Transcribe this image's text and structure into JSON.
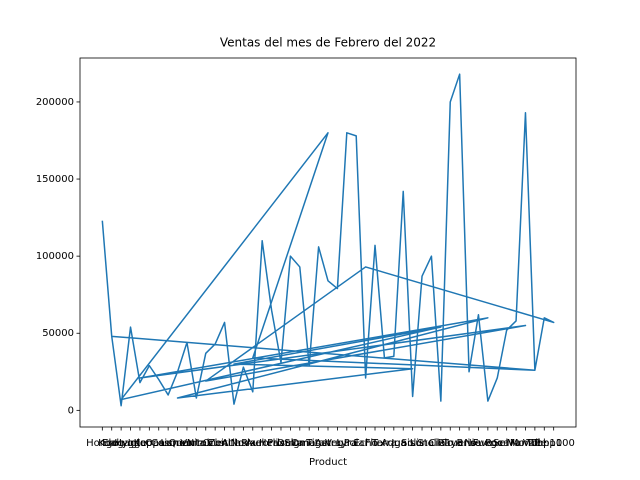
{
  "chart_data": {
    "type": "line",
    "title": "Ventas del mes de Febrero del 2022",
    "x_label": "Product",
    "color": "#1f77b4",
    "categories": [
      "Hongo",
      "Koala",
      "Elegant",
      "Hygge",
      "Igloo",
      "Kappa",
      "Oasis",
      "Cosmo",
      "Lumen",
      "Quanta",
      "Vortex",
      "Nimbus",
      "Orbit",
      "Zenith",
      "Atlas",
      "Nova",
      "Pixel",
      "Aurora",
      "Helix",
      "Prism",
      "Delta",
      "Sigma",
      "Omega",
      "Titan",
      "Astra",
      "Vega",
      "Lyra",
      "Polar",
      "Echo",
      "Flux",
      "Terra",
      "Aqua",
      "Ignis",
      "Solis",
      "Luna",
      "Stella",
      "Cielo",
      "Rayo",
      "Trueno",
      "Brisa",
      "Nieve",
      "Fuego",
      "Roca",
      "Selva",
      "Mar",
      "Monte",
      "Valle",
      "Tohp10",
      "Tohp100",
      "Echo",
      "Nimbus",
      "Monte",
      "Igloo",
      "Fuego",
      "Lumen",
      "Solis",
      "Atlas",
      "Cielo",
      "Elegant",
      "Astra",
      "Pixel",
      "Valle",
      "Koala"
    ],
    "values": [
      123000,
      48000,
      3000,
      54000,
      18000,
      29000,
      20000,
      10000,
      25000,
      44000,
      8000,
      37000,
      43000,
      57000,
      4000,
      28000,
      12000,
      110000,
      65000,
      31000,
      100000,
      93000,
      29000,
      106000,
      84000,
      79000,
      180000,
      178000,
      21000,
      107000,
      34000,
      35000,
      142000,
      9000,
      87000,
      100000,
      6000,
      200000,
      218000,
      25000,
      62000,
      6000,
      21000,
      52000,
      58000,
      193000,
      26000,
      60000,
      57000,
      93000,
      19000,
      55000,
      21000,
      60000,
      8000,
      27000,
      30000,
      54000,
      7000,
      180000,
      34000,
      26000,
      48000
    ],
    "ylim": [
      -10800,
      228500
    ],
    "yticks": [
      0,
      50000,
      100000,
      150000,
      200000
    ]
  }
}
